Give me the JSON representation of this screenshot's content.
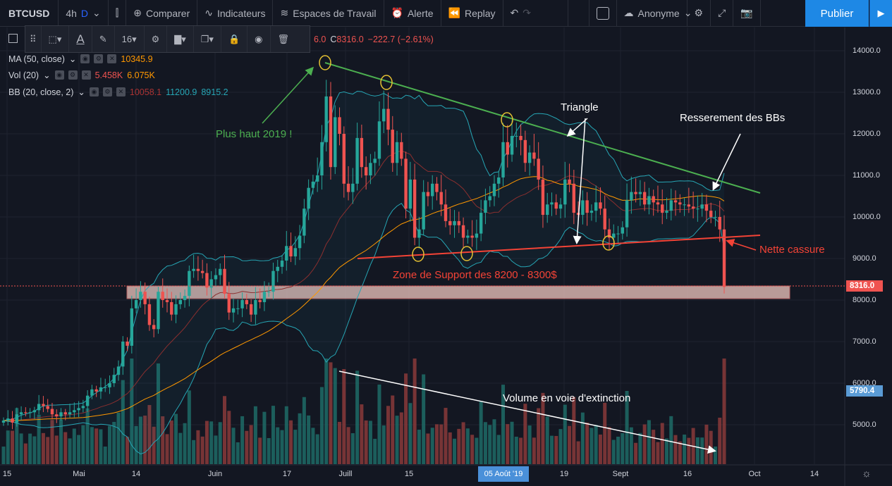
{
  "toolbar": {
    "symbol": "BTCUSD",
    "interval_4h": "4h",
    "interval_d": "D",
    "compare": "Comparer",
    "indicators": "Indicateurs",
    "workspaces": "Espaces de Travail",
    "alert": "Alerte",
    "replay": "Replay",
    "user": "Anonyme",
    "publish": "Publier"
  },
  "drawing_toolbar": {
    "font_size": "16",
    "icons": [
      "rect-select-icon",
      "text-color-icon",
      "pencil-icon",
      "gear-icon",
      "fill-icon",
      "clone-icon",
      "lock-icon",
      "eye-icon",
      "trash-icon"
    ]
  },
  "legend": {
    "ohlc_visible": "6.0",
    "close_label": "C",
    "close": "8316.0",
    "change": "−222.7 (−2.61%)",
    "ma": {
      "label": "MA (50, close)",
      "value": "10345.9"
    },
    "vol": {
      "label": "Vol (20)",
      "v1": "5.458K",
      "v2": "6.075K"
    },
    "bb": {
      "label": "BB (20, close, 2)",
      "basis": "10058.1",
      "upper": "11200.9",
      "lower": "8915.2"
    }
  },
  "annotations": {
    "high": "Plus haut 2019 !",
    "triangle": "Triangle",
    "bbs": "Resserement des BBs",
    "break": "Nette cassure",
    "support": "Zone de Support des 8200 - 8300$",
    "volume": "Volume en voie d'extinction"
  },
  "price_axis": {
    "ticks": [
      "14000.0",
      "13000.0",
      "12000.0",
      "11000.0",
      "10000.0",
      "9000.0",
      "8000.0",
      "7000.0",
      "6000.0",
      "5000.0"
    ],
    "last_price": "8316.0",
    "volume_tag": "5790.4"
  },
  "time_axis": {
    "labels": [
      "15",
      "Mai",
      "14",
      "Juin",
      "17",
      "Juill",
      "15",
      "19",
      "Sept",
      "16",
      "Oct",
      "14"
    ],
    "cursor_date": "05 Août '19"
  },
  "colors": {
    "up": "#26a69a",
    "down": "#ef5350",
    "ma": "#ff9800",
    "bb": "#26a6b5",
    "triangle_top": "#4caf50",
    "triangle_bottom": "#f44336",
    "publish": "#1e88e5"
  },
  "chart_data": {
    "type": "candlestick",
    "symbol": "BTCUSD",
    "interval": "D",
    "start_date": "2019-04-14",
    "closes": [
      5100,
      5150,
      5050,
      5250,
      5300,
      5280,
      5300,
      5350,
      5500,
      5450,
      5380,
      5250,
      5200,
      5300,
      5250,
      5300,
      5350,
      5400,
      5450,
      5700,
      5850,
      5800,
      5900,
      5900,
      6000,
      6200,
      6400,
      7000,
      6900,
      7800,
      8000,
      8200,
      7900,
      7400,
      7300,
      8200,
      8000,
      7950,
      7650,
      7900,
      8000,
      8100,
      8700,
      8750,
      8700,
      8650,
      8300,
      8500,
      8600,
      8750,
      8150,
      7700,
      7800,
      7800,
      8000,
      7900,
      7650,
      8000,
      7950,
      8200,
      8200,
      8700,
      8800,
      8950,
      9300,
      9050,
      9250,
      9550,
      10200,
      10700,
      10850,
      11000,
      11800,
      12900,
      11200,
      12400,
      12000,
      10800,
      10600,
      10800,
      11900,
      11200,
      11000,
      11300,
      11400,
      12300,
      12600,
      12100,
      11300,
      11800,
      11400,
      10200,
      10900,
      9500,
      9700,
      10600,
      10500,
      10800,
      10600,
      10300,
      9900,
      9800,
      9900,
      9800,
      9500,
      9550,
      9500,
      9600,
      10100,
      10400,
      10500,
      10800,
      10950,
      11800,
      11500,
      11950,
      11950,
      11850,
      11300,
      11550,
      11400,
      10900,
      10050,
      10300,
      10350,
      10200,
      10300,
      10900,
      10800,
      10100,
      10050,
      10400,
      10100,
      10150,
      10350,
      10200,
      9700,
      9500,
      9600,
      9600,
      9750,
      10400,
      10600,
      10550,
      10600,
      10300,
      10500,
      10350,
      10300,
      10100,
      10150,
      10400,
      10350,
      10300,
      10300,
      10250,
      10200,
      10200,
      10300,
      10150,
      10000,
      10000,
      9700,
      8316
    ],
    "ylim": [
      4300,
      14500
    ],
    "indicators": [
      "MA 50",
      "Volume 20",
      "Bollinger Bands 20,2"
    ]
  }
}
